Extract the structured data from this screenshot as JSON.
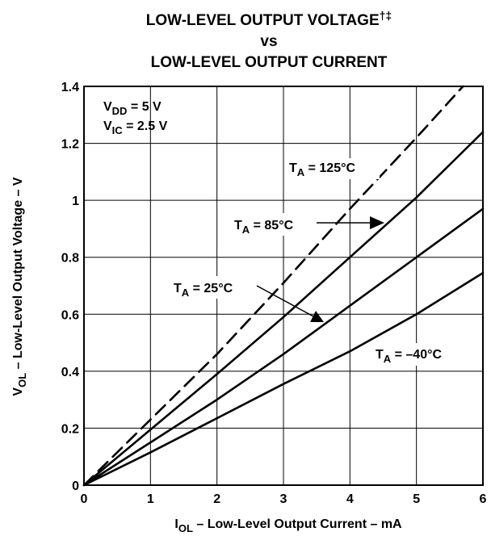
{
  "chart_data": {
    "type": "line",
    "title": {
      "line1": "LOW-LEVEL OUTPUT VOLTAGE",
      "line1_marks": "†‡",
      "line2": "vs",
      "line3": "LOW-LEVEL OUTPUT CURRENT"
    },
    "xlabel": {
      "sym": "I",
      "sub": "OL",
      "rest": " – Low-Level Output Current – mA"
    },
    "ylabel": {
      "sym": "V",
      "sub": "OL",
      "rest": " – Low-Level Output Voltage – V"
    },
    "xlim": [
      0,
      6
    ],
    "ylim": [
      0,
      1.4
    ],
    "x_ticks": [
      0,
      1,
      2,
      3,
      4,
      5,
      6
    ],
    "x_tick_labels": [
      "0",
      "1",
      "2",
      "3",
      "4",
      "5",
      "6"
    ],
    "y_ticks": [
      0,
      0.2,
      0.4,
      0.6,
      0.8,
      1.0,
      1.2,
      1.4
    ],
    "y_tick_labels": [
      "0",
      "0.2",
      "0.4",
      "0.6",
      "0.8",
      "1",
      "1.2",
      "1.4"
    ],
    "grid": true,
    "conditions": [
      {
        "sym": "V",
        "sub": "DD",
        "rest": " = 5 V"
      },
      {
        "sym": "V",
        "sub": "IC",
        "rest": " = 2.5 V"
      }
    ],
    "series": [
      {
        "name": "TA = 125°C",
        "label_sym": "T",
        "label_sub": "A",
        "label_rest": " = 125°C",
        "dash": true,
        "x": [
          0,
          1,
          2,
          3,
          4,
          5,
          5.7
        ],
        "y": [
          0,
          0.23,
          0.46,
          0.71,
          0.97,
          1.22,
          1.4
        ]
      },
      {
        "name": "TA = 85°C",
        "label_sym": "T",
        "label_sub": "A",
        "label_rest": " = 85°C",
        "dash": false,
        "x": [
          0,
          1,
          2,
          3,
          4,
          5,
          6
        ],
        "y": [
          0,
          0.195,
          0.39,
          0.59,
          0.8,
          1.01,
          1.24
        ]
      },
      {
        "name": "TA = 25°C",
        "label_sym": "T",
        "label_sub": "A",
        "label_rest": " = 25°C",
        "dash": false,
        "x": [
          0,
          1,
          2,
          3,
          4,
          5,
          6
        ],
        "y": [
          0,
          0.15,
          0.3,
          0.46,
          0.63,
          0.8,
          0.97
        ]
      },
      {
        "name": "TA = –40°C",
        "label_sym": "T",
        "label_sub": "A",
        "label_rest": " = –40°C",
        "dash": false,
        "x": [
          0,
          1,
          2,
          3,
          4,
          5,
          6
        ],
        "y": [
          0,
          0.115,
          0.235,
          0.355,
          0.47,
          0.6,
          0.745
        ]
      }
    ]
  }
}
